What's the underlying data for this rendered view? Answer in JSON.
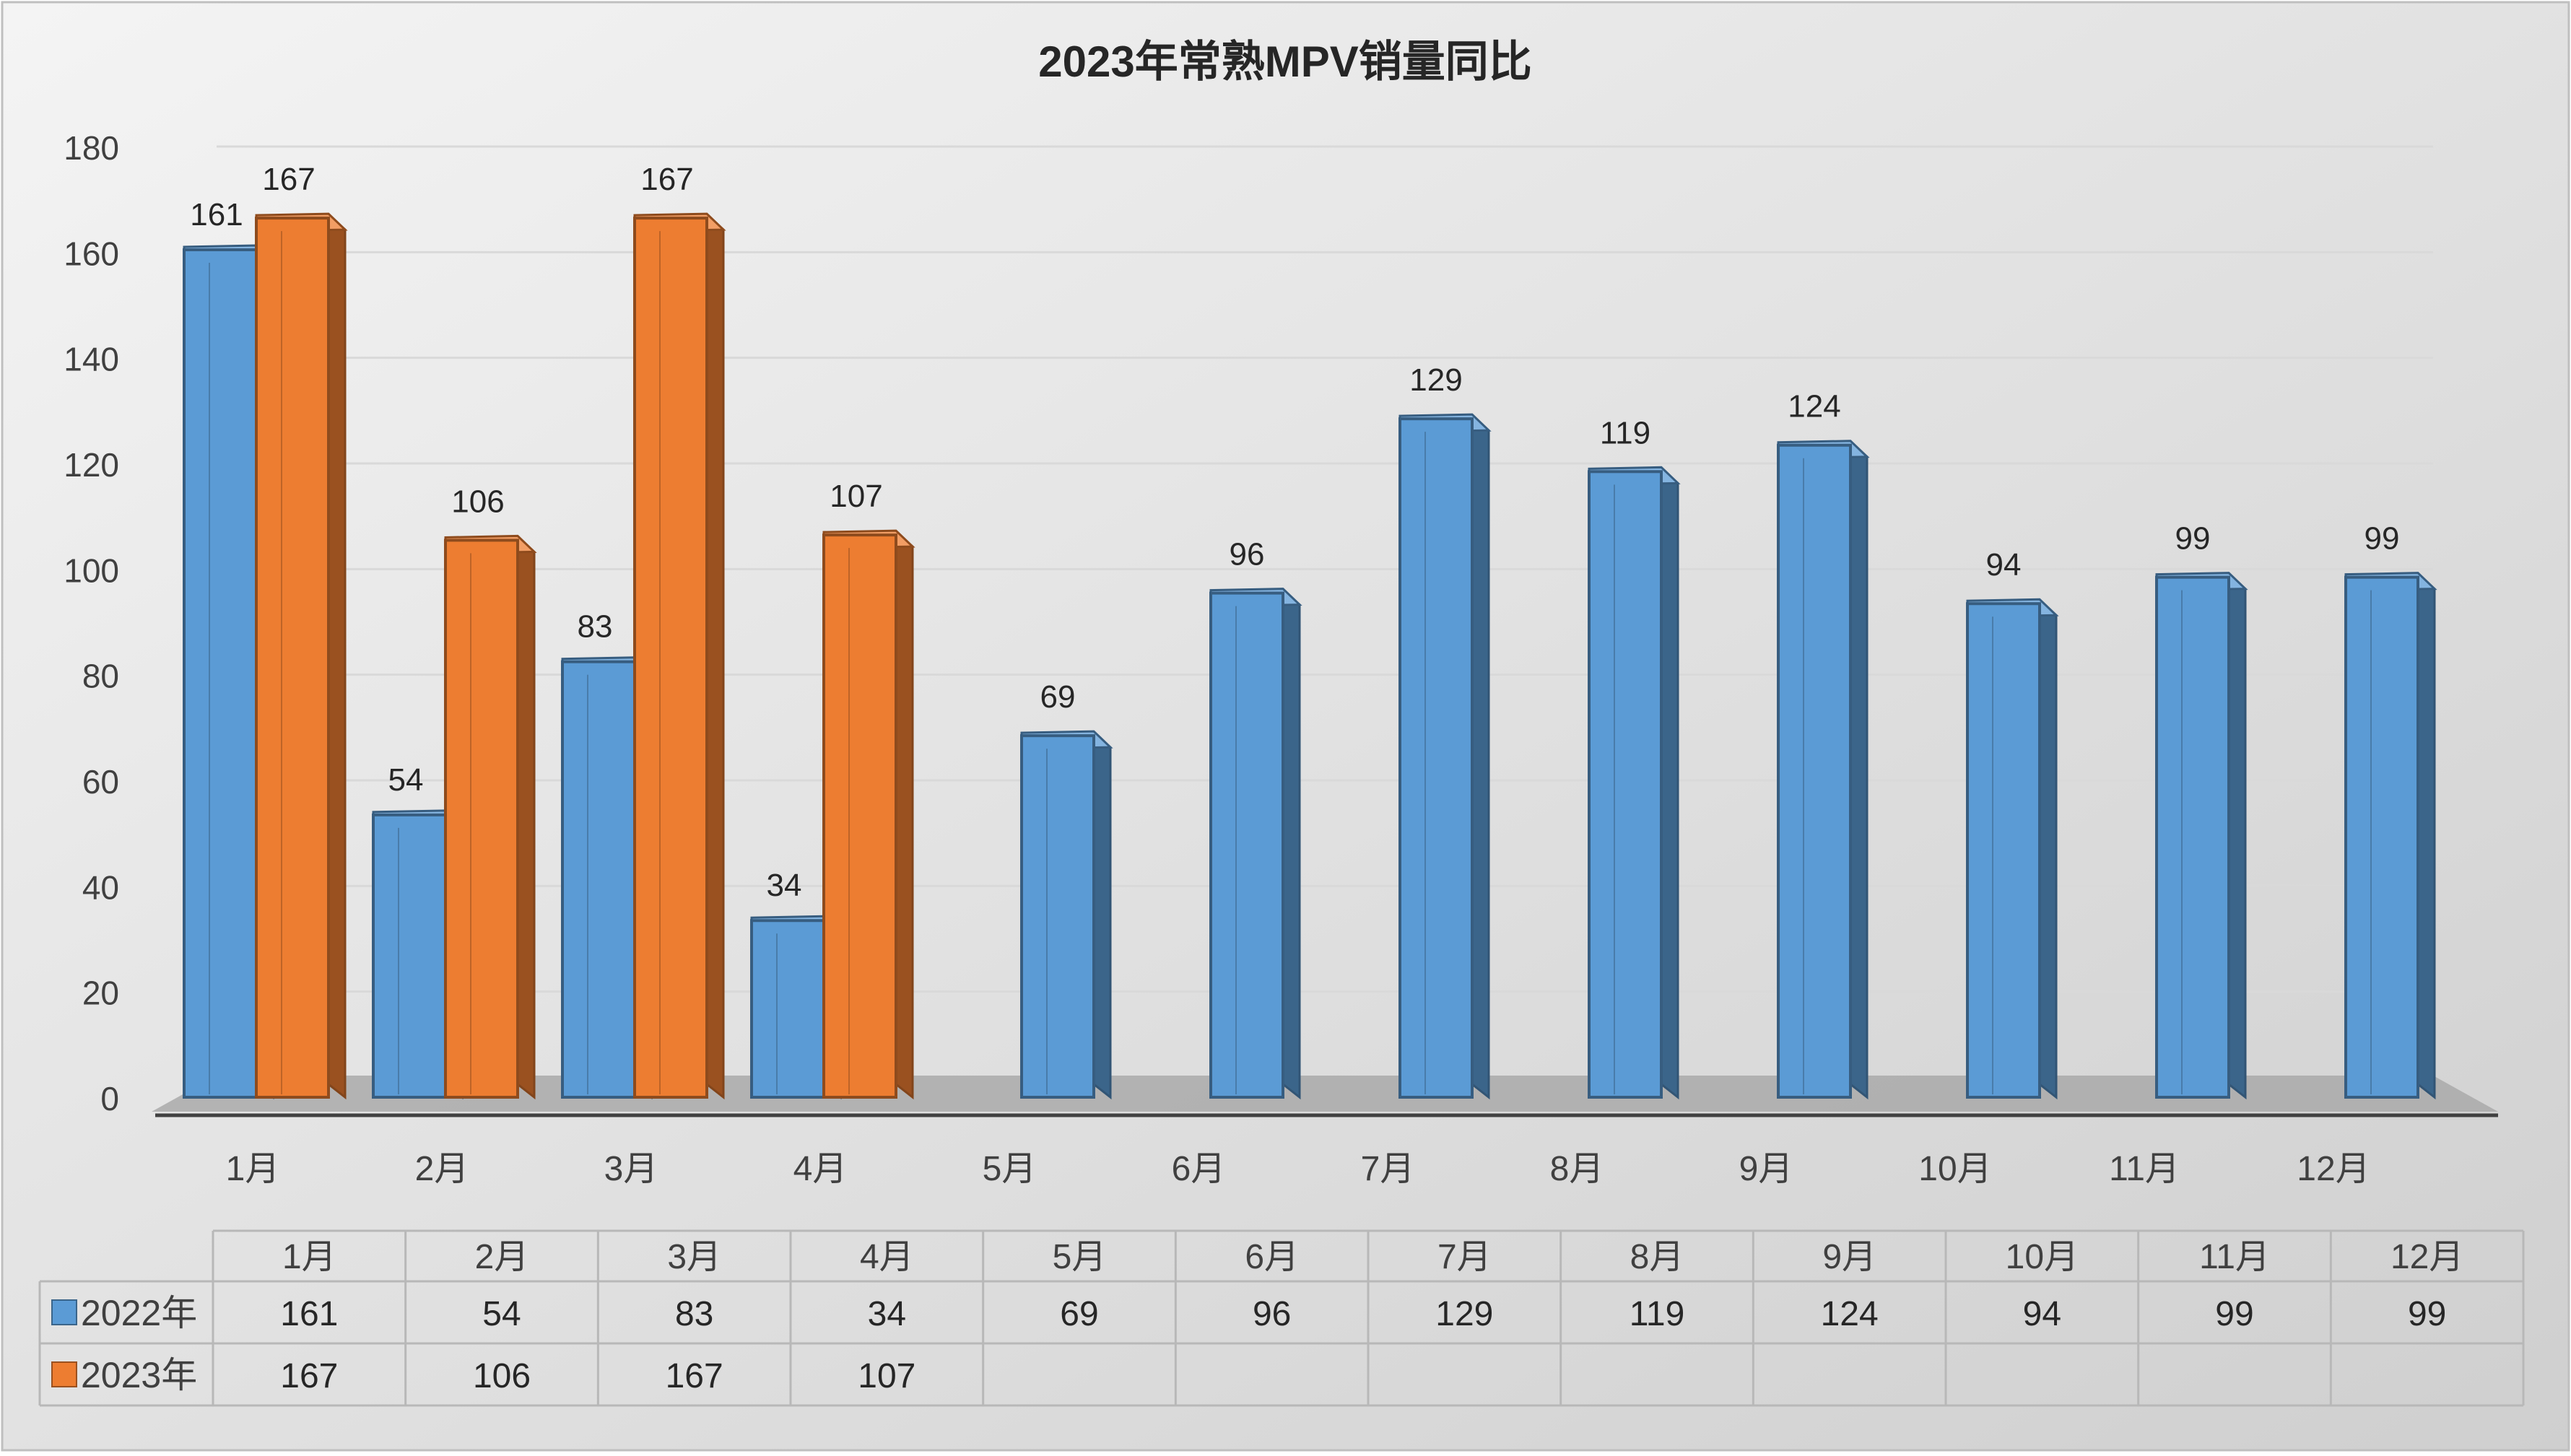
{
  "chart_data": {
    "type": "bar",
    "title": "2023年常熟MPV销量同比",
    "categories": [
      "1月",
      "2月",
      "3月",
      "4月",
      "5月",
      "6月",
      "7月",
      "8月",
      "9月",
      "10月",
      "11月",
      "12月"
    ],
    "series": [
      {
        "name": "2022年",
        "color": "#5B9BD5",
        "values": [
          161,
          54,
          83,
          34,
          69,
          96,
          129,
          119,
          124,
          94,
          99,
          99
        ]
      },
      {
        "name": "2023年",
        "color": "#ED7D31",
        "values": [
          167,
          106,
          167,
          107,
          null,
          null,
          null,
          null,
          null,
          null,
          null,
          null
        ]
      }
    ],
    "ylim": [
      0,
      180
    ],
    "yticks": [
      0,
      20,
      40,
      60,
      80,
      100,
      120,
      140,
      160,
      180
    ],
    "grid": true,
    "data_table": true,
    "three_d": true
  }
}
